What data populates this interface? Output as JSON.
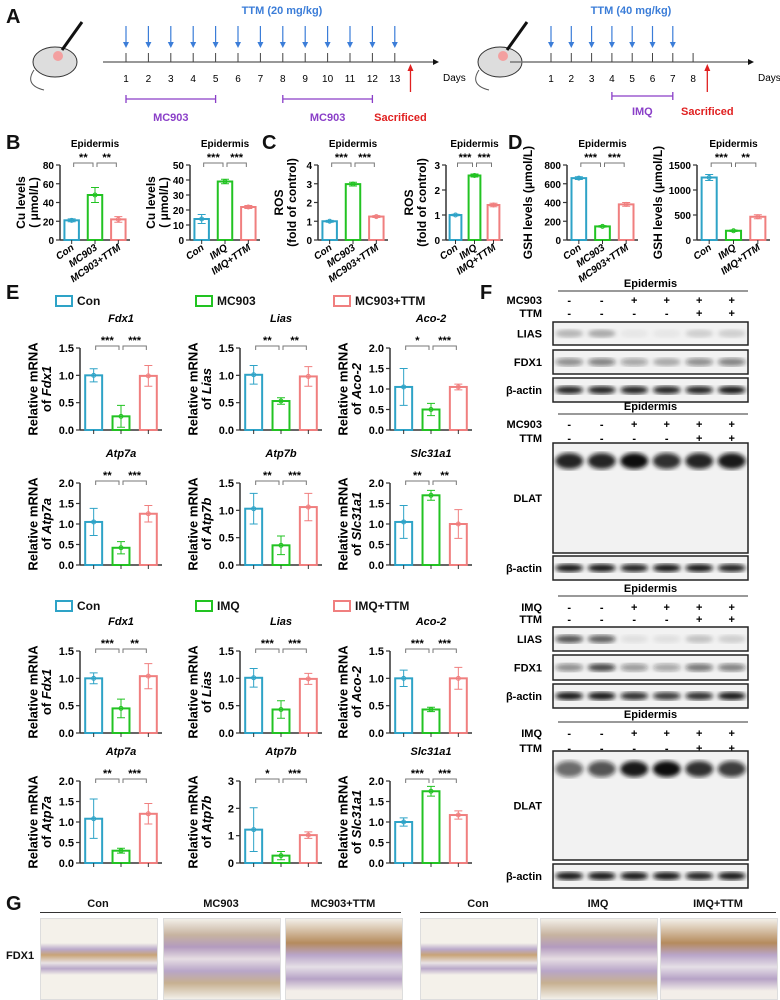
{
  "panel_labels": {
    "A": "A",
    "B": "B",
    "C": "C",
    "D": "D",
    "E": "E",
    "F": "F",
    "G": "G"
  },
  "colors": {
    "con": "#2ea3c7",
    "treat": "#22c322",
    "ttm": "#f07f7f",
    "dose": "#3b7dd8",
    "regimen": "#8a3fc8",
    "sacrifice": "#e02020"
  },
  "timeline": [
    {
      "dose": "TTM (20 mg/kg)",
      "days": [
        "1",
        "2",
        "3",
        "4",
        "5",
        "6",
        "7",
        "8",
        "9",
        "10",
        "11",
        "12",
        "13"
      ],
      "dosing_days": [
        1,
        2,
        3,
        4,
        5,
        6,
        7,
        8,
        9,
        10,
        11,
        12,
        13
      ],
      "axis_label": "Days",
      "treatment": [
        {
          "label": "MC903",
          "from": 1,
          "to": 5
        },
        {
          "label": "MC903",
          "from": 8,
          "to": 12
        }
      ],
      "sacrifice_label": "Sacrificed",
      "sacrifice_day": 13.7
    },
    {
      "dose": "TTM (40 mg/kg)",
      "days": [
        "1",
        "2",
        "3",
        "4",
        "5",
        "6",
        "7",
        "8"
      ],
      "dosing_days": [
        1,
        2,
        3,
        4,
        5,
        6,
        7
      ],
      "axis_label": "Days",
      "treatment": [
        {
          "label": "IMQ",
          "from": 4,
          "to": 7
        }
      ],
      "sacrifice_label": "Sacrificed",
      "sacrifice_day": 8.7
    }
  ],
  "legends": [
    [
      "Con",
      "MC903",
      "MC903+TTM"
    ],
    [
      "Con",
      "IMQ",
      "IMQ+TTM"
    ]
  ],
  "chart_data": [
    {
      "type": "bar",
      "title": "Epidermis",
      "ylabel": [
        "Cu levels",
        "( μmol/L)"
      ],
      "ylim": [
        0,
        80
      ],
      "yticks": [
        0,
        20,
        40,
        60,
        80
      ],
      "ytick_labels": [
        "0",
        "20",
        "40",
        "60",
        "80"
      ],
      "categories": [
        "Con",
        "MC903",
        "MC903+TTM"
      ],
      "values": [
        21,
        48,
        22
      ],
      "errors": [
        1.5,
        8,
        3
      ],
      "significance": [
        "**",
        "**"
      ]
    },
    {
      "type": "bar",
      "title": "Epidermis",
      "ylabel": [
        "Cu levels",
        "( μmol/L)"
      ],
      "ylim": [
        0,
        50
      ],
      "yticks": [
        0,
        10,
        20,
        30,
        40,
        50
      ],
      "ytick_labels": [
        "0",
        "10",
        "20",
        "30",
        "40",
        "50"
      ],
      "categories": [
        "Con",
        "IMQ",
        "IMQ+TTM"
      ],
      "values": [
        14,
        39,
        22
      ],
      "errors": [
        3,
        1.5,
        1
      ],
      "significance": [
        "***",
        "***"
      ]
    },
    {
      "type": "bar",
      "title": "Epidermis",
      "ylabel": [
        "ROS",
        "(fold of control)"
      ],
      "ylim": [
        0,
        4
      ],
      "yticks": [
        0,
        1,
        2,
        3,
        4
      ],
      "ytick_labels": [
        "0",
        "1",
        "2",
        "3",
        "4"
      ],
      "categories": [
        "Con",
        "MC903",
        "MC903+TTM"
      ],
      "values": [
        1.0,
        2.98,
        1.25
      ],
      "errors": [
        0.05,
        0.1,
        0.05
      ],
      "significance": [
        "***",
        "***"
      ]
    },
    {
      "type": "bar",
      "title": "Epidermis",
      "ylabel": [
        "ROS",
        "(fold of control)"
      ],
      "ylim": [
        0,
        3
      ],
      "yticks": [
        0,
        1,
        2,
        3
      ],
      "ytick_labels": [
        "0",
        "1",
        "2",
        "3"
      ],
      "categories": [
        "Con",
        "IMQ",
        "IMQ+TTM"
      ],
      "values": [
        1.0,
        2.58,
        1.4
      ],
      "errors": [
        0.03,
        0.06,
        0.07
      ],
      "significance": [
        "***",
        "***"
      ]
    },
    {
      "type": "bar",
      "title": "Epidermis",
      "ylabel": [
        "GSH levels (μmol/L)"
      ],
      "ylim": [
        0,
        800
      ],
      "yticks": [
        0,
        200,
        400,
        600,
        800
      ],
      "ytick_labels": [
        "0",
        "200",
        "400",
        "600",
        "800"
      ],
      "categories": [
        "Con",
        "MC903",
        "MC903+TTM"
      ],
      "values": [
        660,
        145,
        380
      ],
      "errors": [
        15,
        8,
        20
      ],
      "significance": [
        "***",
        "***"
      ]
    },
    {
      "type": "bar",
      "title": "Epidermis",
      "ylabel": [
        "GSH levels (μmol/L)"
      ],
      "ylim": [
        0,
        1500
      ],
      "yticks": [
        0,
        500,
        1000,
        1500
      ],
      "ytick_labels": [
        "0",
        "500",
        "1000",
        "1500"
      ],
      "categories": [
        "Con",
        "IMQ",
        "IMQ+TTM"
      ],
      "values": [
        1250,
        185,
        465
      ],
      "errors": [
        60,
        15,
        40
      ],
      "significance": [
        "***",
        "**"
      ]
    },
    {
      "type": "bar",
      "title": "Fdx1",
      "ylabel": [
        "Relative mRNA",
        "of Fdx1"
      ],
      "ylim": [
        0,
        1.5
      ],
      "yticks": [
        0,
        0.5,
        1,
        1.5
      ],
      "ytick_labels": [
        "0.0",
        "0.5",
        "1.0",
        "1.5"
      ],
      "categories": [
        "Con",
        "MC903",
        "MC903+TTM"
      ],
      "values": [
        1.0,
        0.25,
        0.99
      ],
      "errors": [
        0.12,
        0.2,
        0.19
      ],
      "significance": [
        "***",
        "***"
      ]
    },
    {
      "type": "bar",
      "title": "Lias",
      "ylabel": [
        "Relative mRNA",
        "of Lias"
      ],
      "ylim": [
        0,
        1.5
      ],
      "yticks": [
        0,
        0.5,
        1,
        1.5
      ],
      "ytick_labels": [
        "0.0",
        "0.5",
        "1.0",
        "1.5"
      ],
      "categories": [
        "Con",
        "MC903",
        "MC903+TTM"
      ],
      "values": [
        1.01,
        0.53,
        0.98
      ],
      "errors": [
        0.17,
        0.06,
        0.18
      ],
      "significance": [
        "**",
        "**"
      ]
    },
    {
      "type": "bar",
      "title": "Aco-2",
      "ylabel": [
        "Relative mRNA",
        "of Aco-2"
      ],
      "ylim": [
        0,
        2
      ],
      "yticks": [
        0,
        0.5,
        1,
        1.5,
        2
      ],
      "ytick_labels": [
        "0.0",
        "0.5",
        "1.0",
        "1.5",
        "2.0"
      ],
      "categories": [
        "Con",
        "MC903",
        "MC903+TTM"
      ],
      "values": [
        1.05,
        0.5,
        1.05
      ],
      "errors": [
        0.45,
        0.15,
        0.07
      ],
      "significance": [
        "*",
        "***"
      ]
    },
    {
      "type": "bar",
      "title": "Atp7a",
      "ylabel": [
        "Relative mRNA",
        "of Atp7a"
      ],
      "ylim": [
        0,
        2
      ],
      "yticks": [
        0,
        0.5,
        1,
        1.5,
        2
      ],
      "ytick_labels": [
        "0.0",
        "0.5",
        "1.0",
        "1.5",
        "2.0"
      ],
      "categories": [
        "Con",
        "MC903",
        "MC903+TTM"
      ],
      "values": [
        1.05,
        0.42,
        1.25
      ],
      "errors": [
        0.33,
        0.15,
        0.2
      ],
      "significance": [
        "**",
        "***"
      ]
    },
    {
      "type": "bar",
      "title": "Atp7b",
      "ylabel": [
        "Relative mRNA",
        "of Atp7b"
      ],
      "ylim": [
        0,
        1.5
      ],
      "yticks": [
        0,
        0.5,
        1,
        1.5
      ],
      "ytick_labels": [
        "0.0",
        "0.5",
        "1.0",
        "1.5"
      ],
      "categories": [
        "Con",
        "MC903",
        "MC903+TTM"
      ],
      "values": [
        1.03,
        0.36,
        1.06
      ],
      "errors": [
        0.28,
        0.17,
        0.25
      ],
      "significance": [
        "**",
        "***"
      ]
    },
    {
      "type": "bar",
      "title": "Slc31a1",
      "ylabel": [
        "Relative mRNA",
        "of Slc31a1"
      ],
      "ylim": [
        0,
        2
      ],
      "yticks": [
        0,
        0.5,
        1,
        1.5,
        2
      ],
      "ytick_labels": [
        "0.0",
        "0.5",
        "1.0",
        "1.5",
        "2.0"
      ],
      "categories": [
        "Con",
        "MC903",
        "MC903+TTM"
      ],
      "values": [
        1.05,
        1.7,
        1.0
      ],
      "errors": [
        0.4,
        0.12,
        0.35
      ],
      "significance": [
        "**",
        "**"
      ]
    },
    {
      "type": "bar",
      "title": "Fdx1",
      "ylabel": [
        "Relative mRNA",
        "of Fdx1"
      ],
      "ylim": [
        0,
        1.5
      ],
      "yticks": [
        0,
        0.5,
        1,
        1.5
      ],
      "ytick_labels": [
        "0.0",
        "0.5",
        "1.0",
        "1.5"
      ],
      "categories": [
        "Con",
        "IMQ",
        "IMQ+TTM"
      ],
      "values": [
        1.0,
        0.45,
        1.04
      ],
      "errors": [
        0.1,
        0.17,
        0.23
      ],
      "significance": [
        "***",
        "**"
      ]
    },
    {
      "type": "bar",
      "title": "Lias",
      "ylabel": [
        "Relative mRNA",
        "of Lias"
      ],
      "ylim": [
        0,
        1.5
      ],
      "yticks": [
        0,
        0.5,
        1,
        1.5
      ],
      "ytick_labels": [
        "0.0",
        "0.5",
        "1.0",
        "1.5"
      ],
      "categories": [
        "Con",
        "IMQ",
        "IMQ+TTM"
      ],
      "values": [
        1.01,
        0.43,
        0.99
      ],
      "errors": [
        0.17,
        0.16,
        0.1
      ],
      "significance": [
        "***",
        "***"
      ]
    },
    {
      "type": "bar",
      "title": "Aco-2",
      "ylabel": [
        "Relative mRNA",
        "of Aco-2"
      ],
      "ylim": [
        0,
        1.5
      ],
      "yticks": [
        0,
        0.5,
        1,
        1.5
      ],
      "ytick_labels": [
        "0.0",
        "0.5",
        "1.0",
        "1.5"
      ],
      "categories": [
        "Con",
        "IMQ",
        "IMQ+TTM"
      ],
      "values": [
        1.0,
        0.43,
        1.0
      ],
      "errors": [
        0.15,
        0.04,
        0.2
      ],
      "significance": [
        "***",
        "***"
      ]
    },
    {
      "type": "bar",
      "title": "Atp7a",
      "ylabel": [
        "Relative mRNA",
        "of Atp7a"
      ],
      "ylim": [
        0,
        2
      ],
      "yticks": [
        0,
        0.5,
        1,
        1.5,
        2
      ],
      "ytick_labels": [
        "0.0",
        "0.5",
        "1.0",
        "1.5",
        "2.0"
      ],
      "categories": [
        "Con",
        "IMQ",
        "IMQ+TTM"
      ],
      "values": [
        1.08,
        0.3,
        1.2
      ],
      "errors": [
        0.48,
        0.06,
        0.25
      ],
      "significance": [
        "**",
        "***"
      ]
    },
    {
      "type": "bar",
      "title": "Atp7b",
      "ylabel": [
        "Relative mRNA",
        "of Atp7b"
      ],
      "ylim": [
        0,
        3
      ],
      "yticks": [
        0,
        1,
        2,
        3
      ],
      "ytick_labels": [
        "0",
        "1",
        "2",
        "3"
      ],
      "categories": [
        "Con",
        "IMQ",
        "IMQ+TTM"
      ],
      "values": [
        1.22,
        0.27,
        1.02
      ],
      "errors": [
        0.8,
        0.15,
        0.12
      ],
      "significance": [
        "*",
        "***"
      ]
    },
    {
      "type": "bar",
      "title": "Slc31a1",
      "ylabel": [
        "Relative mRNA",
        "of Slc31a1"
      ],
      "ylim": [
        0,
        2
      ],
      "yticks": [
        0,
        0.5,
        1,
        1.5,
        2
      ],
      "ytick_labels": [
        "0.0",
        "0.5",
        "1.0",
        "1.5",
        "2.0"
      ],
      "categories": [
        "Con",
        "IMQ",
        "IMQ+TTM"
      ],
      "values": [
        1.0,
        1.75,
        1.17
      ],
      "errors": [
        0.1,
        0.12,
        0.1
      ],
      "significance": [
        "***",
        "***"
      ]
    }
  ],
  "blots": [
    {
      "header": "Epidermis",
      "rows": [
        {
          "label": "MC903",
          "signs": [
            "-",
            "-",
            "+",
            "+",
            "+",
            "+"
          ]
        },
        {
          "label": "TTM",
          "signs": [
            "-",
            "-",
            "-",
            "-",
            "+",
            "+"
          ]
        }
      ],
      "bands": [
        {
          "label": "LIAS",
          "intensity": [
            0.25,
            0.3,
            0.05,
            0.05,
            0.15,
            0.15
          ]
        },
        {
          "label": "FDX1",
          "intensity": [
            0.45,
            0.5,
            0.35,
            0.3,
            0.45,
            0.5
          ]
        },
        {
          "label": "β-actin",
          "intensity": [
            0.9,
            0.9,
            0.9,
            0.9,
            0.9,
            0.95
          ]
        }
      ]
    },
    {
      "header": "Epidermis",
      "rows": [
        {
          "label": "MC903",
          "signs": [
            "-",
            "-",
            "+",
            "+",
            "+",
            "+"
          ]
        },
        {
          "label": "TTM",
          "signs": [
            "-",
            "-",
            "-",
            "-",
            "+",
            "+"
          ]
        }
      ],
      "bands": [
        {
          "label": "DLAT",
          "intensity": [
            0.9,
            0.9,
            1.0,
            0.85,
            0.9,
            0.95
          ]
        },
        {
          "label": "β-actin",
          "intensity": [
            0.95,
            0.95,
            0.9,
            0.95,
            0.95,
            0.9
          ]
        }
      ]
    },
    {
      "header": "Epidermis",
      "rows": [
        {
          "label": "IMQ",
          "signs": [
            "-",
            "-",
            "+",
            "+",
            "+",
            "+"
          ]
        },
        {
          "label": "TTM",
          "signs": [
            "-",
            "-",
            "-",
            "-",
            "+",
            "+"
          ]
        }
      ],
      "bands": [
        {
          "label": "LIAS",
          "intensity": [
            0.7,
            0.65,
            0.08,
            0.08,
            0.2,
            0.15
          ]
        },
        {
          "label": "FDX1",
          "intensity": [
            0.45,
            0.75,
            0.4,
            0.35,
            0.55,
            0.5
          ]
        },
        {
          "label": "β-actin",
          "intensity": [
            0.95,
            0.95,
            0.85,
            0.8,
            0.85,
            0.95
          ]
        }
      ]
    },
    {
      "header": "Epidermis",
      "rows": [
        {
          "label": "IMQ",
          "signs": [
            "-",
            "-",
            "+",
            "+",
            "+",
            "+"
          ]
        },
        {
          "label": "TTM",
          "signs": [
            "-",
            "-",
            "-",
            "-",
            "+",
            "+"
          ]
        }
      ],
      "bands": [
        {
          "label": "DLAT",
          "intensity": [
            0.6,
            0.7,
            0.95,
            1.0,
            0.85,
            0.8
          ]
        },
        {
          "label": "β-actin",
          "intensity": [
            0.95,
            0.95,
            0.95,
            0.95,
            0.9,
            0.95
          ]
        }
      ]
    }
  ],
  "histology": {
    "marker": "FDX1",
    "groups": [
      [
        "Con",
        "MC903",
        "MC903+TTM"
      ],
      [
        "Con",
        "IMQ",
        "IMQ+TTM"
      ]
    ]
  }
}
